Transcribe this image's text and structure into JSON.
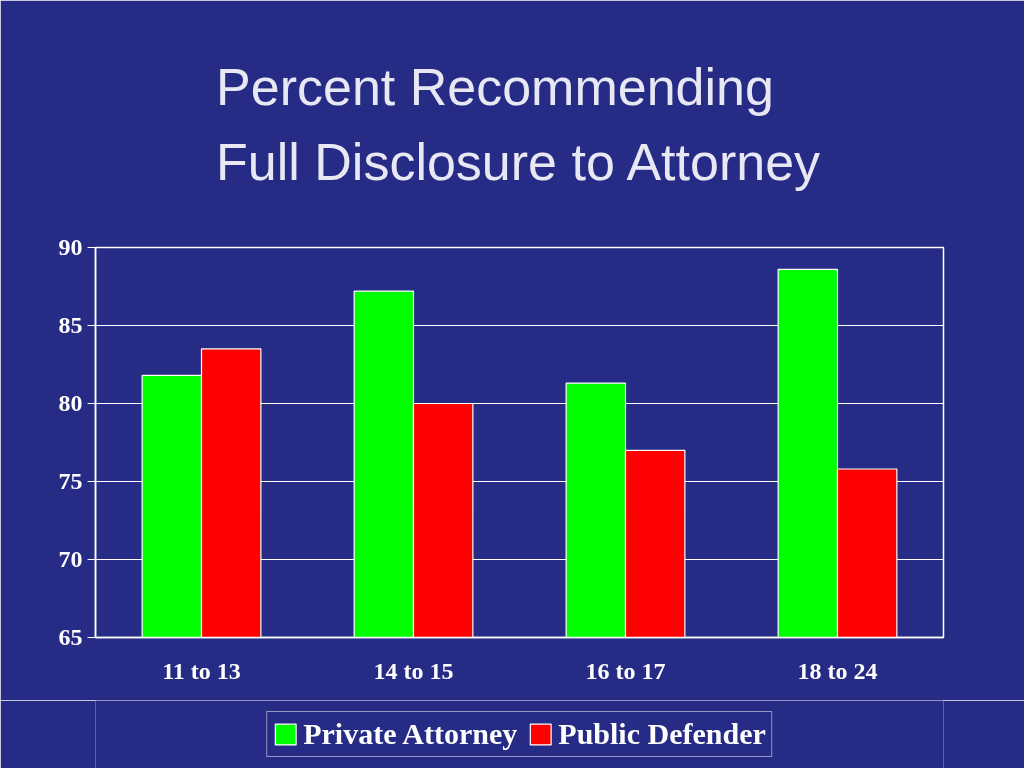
{
  "chart_data": {
    "type": "bar",
    "title": "Percent Recommending\nFull Disclosure to Attorney",
    "categories": [
      "11 to 13",
      "14 to 15",
      "16 to 17",
      "18 to 24"
    ],
    "series": [
      {
        "name": "Private Attorney",
        "color": "#00ff00",
        "values": [
          81.8,
          87.2,
          81.3,
          88.6
        ]
      },
      {
        "name": "Public Defender",
        "color": "#ff0000",
        "values": [
          83.5,
          80.0,
          77.0,
          75.8
        ]
      }
    ],
    "ylim": [
      65,
      90
    ],
    "yticks": [
      65,
      70,
      75,
      80,
      85,
      90
    ],
    "grid": "y",
    "legend": "bottom"
  }
}
